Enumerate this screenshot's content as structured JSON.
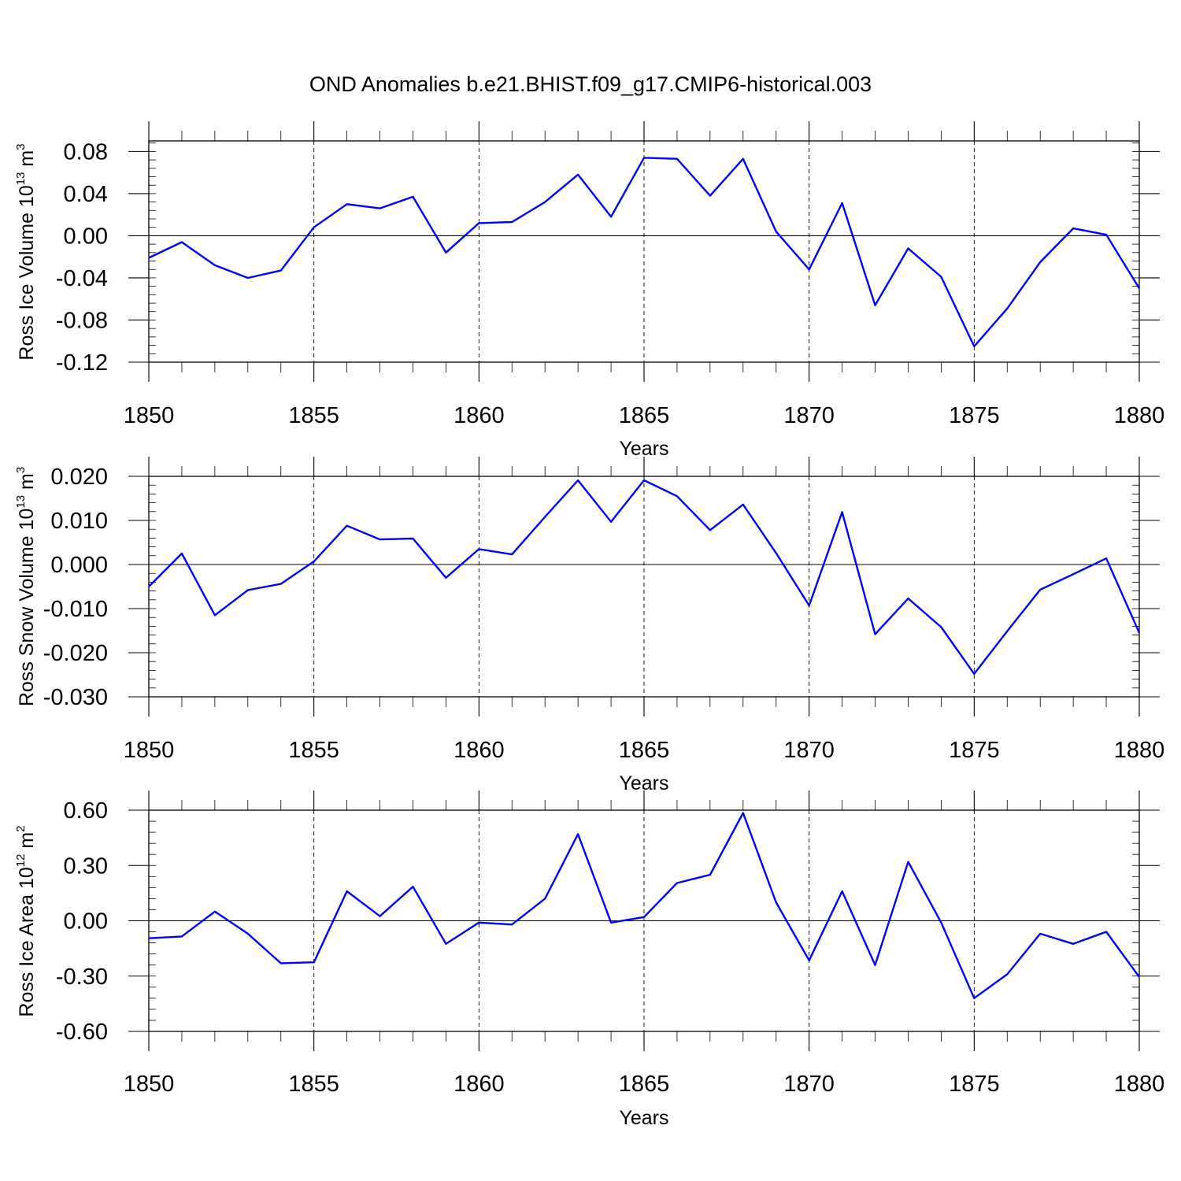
{
  "title": "OND Anomalies b.e21.BHIST.f09_g17.CMIP6-historical.003",
  "colors": {
    "series": "#0000ff",
    "axes": "#000000",
    "background": "#ffffff"
  },
  "chart_data": [
    {
      "type": "line",
      "xlabel": "Years",
      "ylabel": {
        "main": "Ross Ice Volume 10",
        "sup": "13",
        "unit": "m",
        "unit_sup": "3"
      },
      "xlim": [
        1850,
        1880
      ],
      "ylim": [
        -0.12,
        0.09
      ],
      "xticks": [
        1850,
        1855,
        1860,
        1865,
        1870,
        1875,
        1880
      ],
      "xtick_labels": [
        "1850",
        "1855",
        "1860",
        "1865",
        "1870",
        "1875",
        "1880"
      ],
      "yticks": [
        -0.12,
        -0.08,
        -0.04,
        0.0,
        0.04,
        0.08
      ],
      "ytick_labels": [
        "-0.12",
        "-0.08",
        "-0.04",
        "0.00",
        "0.04",
        "0.08"
      ],
      "grid": "vertical-dashed",
      "x": [
        1850,
        1851,
        1852,
        1853,
        1854,
        1855,
        1856,
        1857,
        1858,
        1859,
        1860,
        1861,
        1862,
        1863,
        1864,
        1865,
        1866,
        1867,
        1868,
        1869,
        1870,
        1871,
        1872,
        1873,
        1874,
        1875,
        1876,
        1877,
        1878,
        1879,
        1880
      ],
      "values": [
        -0.021,
        -0.006,
        -0.028,
        -0.04,
        -0.033,
        0.008,
        0.03,
        0.026,
        0.037,
        -0.016,
        0.012,
        0.013,
        0.032,
        0.058,
        0.018,
        0.074,
        0.073,
        0.038,
        0.073,
        0.004,
        -0.032,
        0.031,
        -0.066,
        -0.012,
        -0.039,
        -0.105,
        -0.069,
        -0.025,
        0.007,
        0.001,
        -0.05
      ]
    },
    {
      "type": "line",
      "xlabel": "Years",
      "ylabel": {
        "main": "Ross Snow Volume 10",
        "sup": "13",
        "unit": "m",
        "unit_sup": "3"
      },
      "xlim": [
        1850,
        1880
      ],
      "ylim": [
        -0.03,
        0.02
      ],
      "xticks": [
        1850,
        1855,
        1860,
        1865,
        1870,
        1875,
        1880
      ],
      "xtick_labels": [
        "1850",
        "1855",
        "1860",
        "1865",
        "1870",
        "1875",
        "1880"
      ],
      "yticks": [
        -0.03,
        -0.02,
        -0.01,
        0.0,
        0.01,
        0.02
      ],
      "ytick_labels": [
        "-0.030",
        "-0.020",
        "-0.010",
        "0.000",
        "0.010",
        "0.020"
      ],
      "grid": "vertical-dashed",
      "x": [
        1850,
        1851,
        1852,
        1853,
        1854,
        1855,
        1856,
        1857,
        1858,
        1859,
        1860,
        1861,
        1862,
        1863,
        1864,
        1865,
        1866,
        1867,
        1868,
        1869,
        1870,
        1871,
        1872,
        1873,
        1874,
        1875,
        1876,
        1877,
        1878,
        1879,
        1880
      ],
      "values": [
        -0.005,
        0.0025,
        -0.0115,
        -0.0058,
        -0.0044,
        0.0007,
        0.0088,
        0.0057,
        0.0059,
        -0.003,
        0.0035,
        0.0023,
        0.0108,
        0.0191,
        0.0097,
        0.0191,
        0.0155,
        0.0078,
        0.0136,
        0.0026,
        -0.0093,
        0.0119,
        -0.0158,
        -0.0077,
        -0.0142,
        -0.0248,
        -0.0151,
        -0.0057,
        -0.0022,
        0.0014,
        -0.0155
      ]
    },
    {
      "type": "line",
      "xlabel": "Years",
      "ylabel": {
        "main": "Ross Ice Area 10",
        "sup": "12",
        "unit": "m",
        "unit_sup": "2"
      },
      "xlim": [
        1850,
        1880
      ],
      "ylim": [
        -0.6,
        0.6
      ],
      "xticks": [
        1850,
        1855,
        1860,
        1865,
        1870,
        1875,
        1880
      ],
      "xtick_labels": [
        "1850",
        "1855",
        "1860",
        "1865",
        "1870",
        "1875",
        "1880"
      ],
      "yticks": [
        -0.6,
        -0.3,
        0.0,
        0.3,
        0.6
      ],
      "ytick_labels": [
        "-0.60",
        "-0.30",
        "0.00",
        "0.30",
        "0.60"
      ],
      "grid": "vertical-dashed",
      "x": [
        1850,
        1851,
        1852,
        1853,
        1854,
        1855,
        1856,
        1857,
        1858,
        1859,
        1860,
        1861,
        1862,
        1863,
        1864,
        1865,
        1866,
        1867,
        1868,
        1869,
        1870,
        1871,
        1872,
        1873,
        1874,
        1875,
        1876,
        1877,
        1878,
        1879,
        1880
      ],
      "values": [
        -0.095,
        -0.085,
        0.05,
        -0.07,
        -0.23,
        -0.225,
        0.16,
        0.025,
        0.185,
        -0.125,
        -0.01,
        -0.02,
        0.12,
        0.47,
        -0.01,
        0.02,
        0.205,
        0.25,
        0.585,
        0.1,
        -0.215,
        0.16,
        -0.24,
        0.32,
        -0.01,
        -0.42,
        -0.29,
        -0.07,
        -0.125,
        -0.06,
        -0.305
      ]
    }
  ]
}
